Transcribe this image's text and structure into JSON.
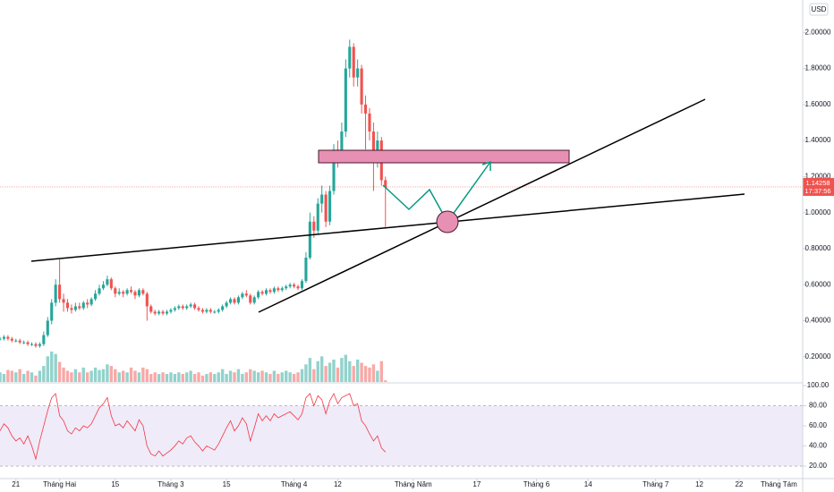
{
  "currency": "USD",
  "chart_data": [
    {
      "type": "candlestick",
      "open": [
        0.3,
        0.3,
        0.31,
        0.3,
        0.29,
        0.29,
        0.28,
        0.28,
        0.27,
        0.27,
        0.26,
        0.27,
        0.32,
        0.4,
        0.5,
        0.6,
        0.52,
        0.5,
        0.47,
        0.46,
        0.48,
        0.47,
        0.5,
        0.49,
        0.52,
        0.55,
        0.58,
        0.6,
        0.63,
        0.58,
        0.55,
        0.56,
        0.55,
        0.57,
        0.56,
        0.54,
        0.57,
        0.55,
        0.48,
        0.45,
        0.44,
        0.45,
        0.44,
        0.45,
        0.46,
        0.47,
        0.48,
        0.47,
        0.48,
        0.49,
        0.47,
        0.46,
        0.45,
        0.46,
        0.45,
        0.45,
        0.46,
        0.48,
        0.5,
        0.52,
        0.5,
        0.53,
        0.55,
        0.54,
        0.5,
        0.53,
        0.56,
        0.55,
        0.57,
        0.56,
        0.58,
        0.57,
        0.58,
        0.59,
        0.6,
        0.59,
        0.58,
        0.62,
        0.75,
        0.95,
        0.9,
        1.05,
        1.1,
        0.95,
        1.12,
        1.35,
        1.3,
        1.45,
        1.8,
        1.92,
        1.75,
        1.8,
        1.6,
        1.55,
        1.45,
        1.3,
        1.4,
        1.18
      ],
      "high": [
        0.31,
        0.32,
        0.32,
        0.31,
        0.3,
        0.3,
        0.29,
        0.29,
        0.28,
        0.28,
        0.28,
        0.34,
        0.42,
        0.52,
        0.63,
        0.74,
        0.55,
        0.52,
        0.49,
        0.5,
        0.5,
        0.51,
        0.52,
        0.53,
        0.57,
        0.6,
        0.62,
        0.65,
        0.64,
        0.59,
        0.58,
        0.57,
        0.58,
        0.59,
        0.57,
        0.58,
        0.58,
        0.56,
        0.49,
        0.46,
        0.46,
        0.46,
        0.46,
        0.47,
        0.48,
        0.49,
        0.49,
        0.49,
        0.5,
        0.5,
        0.48,
        0.47,
        0.47,
        0.47,
        0.46,
        0.47,
        0.49,
        0.51,
        0.53,
        0.53,
        0.54,
        0.56,
        0.57,
        0.55,
        0.54,
        0.57,
        0.57,
        0.58,
        0.58,
        0.59,
        0.59,
        0.59,
        0.6,
        0.61,
        0.61,
        0.6,
        0.63,
        0.78,
        1.0,
        0.98,
        1.08,
        1.15,
        1.12,
        1.15,
        1.38,
        1.4,
        1.5,
        1.85,
        1.96,
        1.94,
        1.85,
        1.82,
        1.65,
        1.58,
        1.5,
        1.45,
        1.42,
        1.2
      ],
      "low": [
        0.29,
        0.29,
        0.29,
        0.28,
        0.28,
        0.27,
        0.27,
        0.26,
        0.26,
        0.25,
        0.25,
        0.26,
        0.31,
        0.38,
        0.48,
        0.5,
        0.45,
        0.45,
        0.44,
        0.45,
        0.46,
        0.46,
        0.47,
        0.48,
        0.51,
        0.54,
        0.57,
        0.59,
        0.57,
        0.53,
        0.54,
        0.53,
        0.54,
        0.55,
        0.52,
        0.53,
        0.54,
        0.4,
        0.44,
        0.43,
        0.43,
        0.43,
        0.43,
        0.44,
        0.45,
        0.46,
        0.46,
        0.46,
        0.47,
        0.46,
        0.45,
        0.44,
        0.44,
        0.44,
        0.44,
        0.44,
        0.45,
        0.47,
        0.49,
        0.49,
        0.49,
        0.52,
        0.53,
        0.49,
        0.49,
        0.52,
        0.54,
        0.54,
        0.55,
        0.55,
        0.56,
        0.56,
        0.57,
        0.58,
        0.58,
        0.57,
        0.57,
        0.61,
        0.74,
        0.86,
        0.88,
        1.0,
        0.92,
        0.93,
        1.1,
        1.25,
        1.28,
        1.42,
        1.75,
        1.7,
        1.7,
        1.55,
        1.35,
        1.4,
        1.12,
        1.25,
        1.15,
        0.92
      ],
      "close": [
        0.3,
        0.31,
        0.3,
        0.29,
        0.29,
        0.28,
        0.28,
        0.27,
        0.27,
        0.26,
        0.27,
        0.32,
        0.4,
        0.5,
        0.6,
        0.52,
        0.5,
        0.47,
        0.46,
        0.48,
        0.47,
        0.5,
        0.49,
        0.52,
        0.55,
        0.58,
        0.6,
        0.63,
        0.58,
        0.55,
        0.56,
        0.55,
        0.57,
        0.56,
        0.54,
        0.57,
        0.55,
        0.48,
        0.45,
        0.44,
        0.45,
        0.44,
        0.45,
        0.46,
        0.47,
        0.48,
        0.47,
        0.48,
        0.49,
        0.47,
        0.46,
        0.45,
        0.46,
        0.45,
        0.45,
        0.46,
        0.48,
        0.5,
        0.52,
        0.5,
        0.53,
        0.55,
        0.54,
        0.5,
        0.53,
        0.56,
        0.55,
        0.57,
        0.56,
        0.58,
        0.57,
        0.58,
        0.59,
        0.6,
        0.59,
        0.58,
        0.62,
        0.75,
        0.95,
        0.9,
        1.05,
        1.1,
        0.95,
        1.12,
        1.35,
        1.3,
        1.45,
        1.8,
        1.92,
        1.75,
        1.8,
        1.6,
        1.55,
        1.45,
        1.3,
        1.4,
        1.18,
        1.14
      ],
      "up_color": "#26a69a",
      "down_color": "#ef5350",
      "ylim": [
        0.06,
        2.18
      ],
      "yticks": [
        {
          "value": 0.2,
          "label": "0.20000"
        },
        {
          "value": 0.4,
          "label": "0.40000"
        },
        {
          "value": 0.6,
          "label": "0.60000"
        },
        {
          "value": 0.8,
          "label": "0.80000"
        },
        {
          "value": 1.0,
          "label": "1.00000"
        },
        {
          "value": 1.2,
          "label": "1.20000"
        },
        {
          "value": 1.4,
          "label": "1.40000"
        },
        {
          "value": 1.6,
          "label": "1.60000"
        },
        {
          "value": 1.8,
          "label": "1.80000"
        },
        {
          "value": 2.0,
          "label": "2.00000"
        }
      ],
      "xlim": [
        0,
        202
      ],
      "xticks": [
        {
          "value": 4,
          "label": "21"
        },
        {
          "value": 15,
          "label": "Tháng Hai"
        },
        {
          "value": 29,
          "label": "15"
        },
        {
          "value": 43,
          "label": "Tháng 3"
        },
        {
          "value": 57,
          "label": "15"
        },
        {
          "value": 74,
          "label": "Tháng 4"
        },
        {
          "value": 85,
          "label": "12"
        },
        {
          "value": 104,
          "label": "Tháng Năm"
        },
        {
          "value": 120,
          "label": "17"
        },
        {
          "value": 135,
          "label": "Tháng 6"
        },
        {
          "value": 148,
          "label": "14"
        },
        {
          "value": 165,
          "label": "Tháng 7"
        },
        {
          "value": 176,
          "label": "12"
        },
        {
          "value": 186,
          "label": "22"
        },
        {
          "value": 196,
          "label": "Tháng Tám"
        }
      ],
      "last_price": 1.14258,
      "countdown": "17:37:56"
    },
    {
      "type": "volume",
      "values": [
        12,
        10,
        15,
        14,
        12,
        16,
        10,
        14,
        12,
        8,
        14,
        20,
        32,
        38,
        35,
        25,
        18,
        14,
        12,
        16,
        12,
        18,
        12,
        14,
        18,
        15,
        16,
        22,
        20,
        16,
        12,
        14,
        12,
        18,
        14,
        12,
        18,
        16,
        10,
        12,
        10,
        12,
        10,
        12,
        10,
        12,
        10,
        12,
        14,
        10,
        12,
        8,
        10,
        12,
        10,
        12,
        16,
        10,
        14,
        12,
        16,
        10,
        12,
        16,
        14,
        12,
        14,
        12,
        10,
        14,
        10,
        12,
        14,
        12,
        10,
        12,
        16,
        22,
        30,
        16,
        26,
        32,
        20,
        24,
        28,
        18,
        30,
        34,
        26,
        20,
        28,
        24,
        20,
        18,
        22,
        14,
        26,
        2
      ]
    },
    {
      "type": "rsi",
      "color": "#f23645",
      "values": [
        55,
        62,
        58,
        50,
        45,
        48,
        42,
        50,
        40,
        27,
        45,
        60,
        75,
        88,
        92,
        70,
        65,
        55,
        52,
        58,
        55,
        60,
        58,
        62,
        70,
        78,
        82,
        88,
        70,
        60,
        62,
        58,
        65,
        60,
        55,
        66,
        60,
        40,
        32,
        30,
        35,
        30,
        33,
        36,
        40,
        45,
        42,
        48,
        50,
        44,
        40,
        35,
        40,
        38,
        36,
        42,
        50,
        58,
        65,
        55,
        60,
        68,
        62,
        45,
        58,
        72,
        65,
        70,
        65,
        72,
        68,
        70,
        72,
        74,
        70,
        66,
        72,
        88,
        92,
        80,
        90,
        86,
        72,
        85,
        92,
        82,
        88,
        90,
        92,
        80,
        82,
        65,
        60,
        52,
        45,
        50,
        38,
        34
      ],
      "ylim": [
        7.6,
        102.7
      ],
      "yticks": [
        {
          "value": 20,
          "label": "20.00"
        },
        {
          "value": 40,
          "label": "40.00"
        },
        {
          "value": 60,
          "label": "60.00"
        },
        {
          "value": 80,
          "label": "80.00"
        },
        {
          "value": 100,
          "label": "100.00"
        }
      ],
      "band": [
        20,
        80
      ]
    }
  ]
}
